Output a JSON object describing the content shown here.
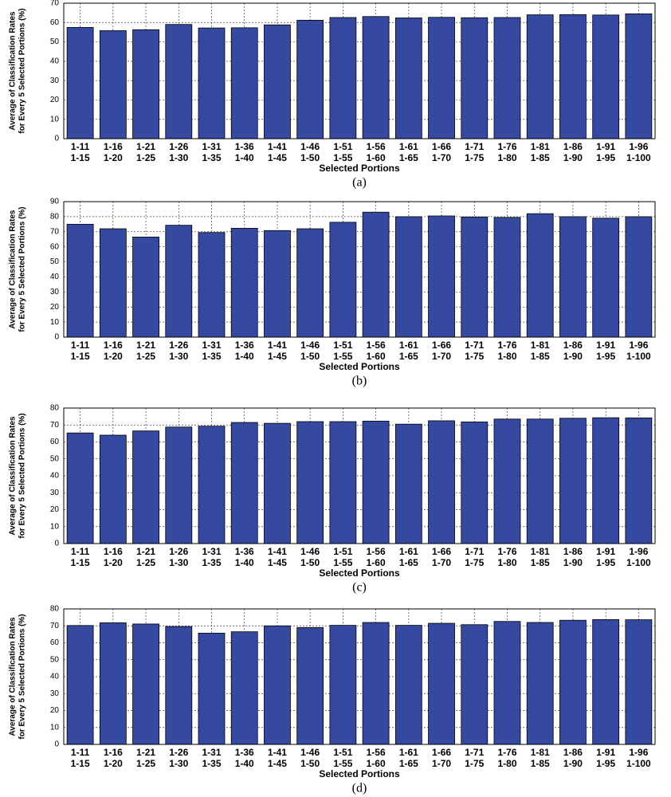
{
  "chart_data": [
    {
      "type": "bar",
      "caption": "(a)",
      "xlabel": "Selected Portions",
      "ylabel": [
        "Average of Classification Rates",
        "for Every 5 Selected Portions (%)"
      ],
      "categories": [
        [
          "1-11",
          "1-15"
        ],
        [
          "1-16",
          "1-20"
        ],
        [
          "1-21",
          "1-25"
        ],
        [
          "1-26",
          "1-30"
        ],
        [
          "1-31",
          "1-35"
        ],
        [
          "1-36",
          "1-40"
        ],
        [
          "1-41",
          "1-45"
        ],
        [
          "1-46",
          "1-50"
        ],
        [
          "1-51",
          "1-55"
        ],
        [
          "1-56",
          "1-60"
        ],
        [
          "1-61",
          "1-65"
        ],
        [
          "1-66",
          "1-70"
        ],
        [
          "1-71",
          "1-75"
        ],
        [
          "1-76",
          "1-80"
        ],
        [
          "1-81",
          "1-85"
        ],
        [
          "1-86",
          "1-90"
        ],
        [
          "1-91",
          "1-95"
        ],
        [
          "1-96",
          "1-100"
        ]
      ],
      "values": [
        57.5,
        55.8,
        56.3,
        59,
        57.2,
        57.3,
        58.8,
        61.2,
        62.6,
        63.1,
        62.4,
        62.7,
        62.5,
        62.6,
        64,
        64.1,
        63.9,
        64.5
      ],
      "color": "#3549a0",
      "ylim": [
        0,
        70
      ],
      "yticks": [
        0,
        10,
        20,
        30,
        40,
        50,
        60,
        70
      ],
      "grid": true
    },
    {
      "type": "bar",
      "caption": "(b)",
      "xlabel": "Selected Portions",
      "ylabel": [
        "Average of Classification Rates",
        "for Every 5 Selected Portions (%)"
      ],
      "categories": [
        [
          "1-11",
          "1-15"
        ],
        [
          "1-16",
          "1-20"
        ],
        [
          "1-21",
          "1-25"
        ],
        [
          "1-26",
          "1-30"
        ],
        [
          "1-31",
          "1-35"
        ],
        [
          "1-36",
          "1-40"
        ],
        [
          "1-41",
          "1-45"
        ],
        [
          "1-46",
          "1-50"
        ],
        [
          "1-51",
          "1-55"
        ],
        [
          "1-56",
          "1-60"
        ],
        [
          "1-61",
          "1-65"
        ],
        [
          "1-66",
          "1-70"
        ],
        [
          "1-71",
          "1-75"
        ],
        [
          "1-76",
          "1-80"
        ],
        [
          "1-81",
          "1-85"
        ],
        [
          "1-86",
          "1-90"
        ],
        [
          "1-91",
          "1-95"
        ],
        [
          "1-96",
          "1-100"
        ]
      ],
      "values": [
        75,
        72,
        66.5,
        74.3,
        69.5,
        72.3,
        70.8,
        72,
        76.3,
        83,
        80,
        80.5,
        79.8,
        79.5,
        82,
        80,
        79,
        80
      ],
      "color": "#3549a0",
      "ylim": [
        0,
        90
      ],
      "yticks": [
        0,
        10,
        20,
        30,
        40,
        50,
        60,
        70,
        80,
        90
      ],
      "grid": true
    },
    {
      "type": "bar",
      "caption": "(c)",
      "xlabel": "Selected Portions",
      "ylabel": [
        "Average of Classification Rates",
        "for Every 5 Selected Portions (%)"
      ],
      "categories": [
        [
          "1-11",
          "1-15"
        ],
        [
          "1-16",
          "1-20"
        ],
        [
          "1-21",
          "1-25"
        ],
        [
          "1-26",
          "1-30"
        ],
        [
          "1-31",
          "1-35"
        ],
        [
          "1-36",
          "1-40"
        ],
        [
          "1-41",
          "1-45"
        ],
        [
          "1-46",
          "1-50"
        ],
        [
          "1-51",
          "1-55"
        ],
        [
          "1-56",
          "1-60"
        ],
        [
          "1-61",
          "1-65"
        ],
        [
          "1-66",
          "1-70"
        ],
        [
          "1-71",
          "1-75"
        ],
        [
          "1-76",
          "1-80"
        ],
        [
          "1-81",
          "1-85"
        ],
        [
          "1-86",
          "1-90"
        ],
        [
          "1-91",
          "1-95"
        ],
        [
          "1-96",
          "1-100"
        ]
      ],
      "values": [
        65.3,
        64,
        66.5,
        68.8,
        69.3,
        71.5,
        71,
        72,
        72,
        72.3,
        70.5,
        72.5,
        71.8,
        73.5,
        73.5,
        74,
        74.3,
        74.2
      ],
      "color": "#3549a0",
      "ylim": [
        0,
        80
      ],
      "yticks": [
        0,
        10,
        20,
        30,
        40,
        50,
        60,
        70,
        80
      ],
      "grid": true
    },
    {
      "type": "bar",
      "caption": "(d)",
      "xlabel": "Selected Portions",
      "ylabel": [
        "Average of Classification Rates",
        "for Every 5 Selected Portions (%)"
      ],
      "categories": [
        [
          "1-11",
          "1-15"
        ],
        [
          "1-16",
          "1-20"
        ],
        [
          "1-21",
          "1-25"
        ],
        [
          "1-26",
          "1-30"
        ],
        [
          "1-31",
          "1-35"
        ],
        [
          "1-36",
          "1-40"
        ],
        [
          "1-41",
          "1-45"
        ],
        [
          "1-46",
          "1-50"
        ],
        [
          "1-51",
          "1-55"
        ],
        [
          "1-56",
          "1-60"
        ],
        [
          "1-61",
          "1-65"
        ],
        [
          "1-66",
          "1-70"
        ],
        [
          "1-71",
          "1-75"
        ],
        [
          "1-76",
          "1-80"
        ],
        [
          "1-81",
          "1-85"
        ],
        [
          "1-86",
          "1-90"
        ],
        [
          "1-91",
          "1-95"
        ],
        [
          "1-96",
          "1-100"
        ]
      ],
      "values": [
        70.2,
        71.8,
        71.1,
        69.6,
        65.7,
        66.5,
        70,
        69,
        70.3,
        72,
        70.3,
        71.5,
        70.7,
        72.6,
        72,
        73.3,
        73.7,
        73.6
      ],
      "color": "#3549a0",
      "ylim": [
        0,
        80
      ],
      "yticks": [
        0,
        10,
        20,
        30,
        40,
        50,
        60,
        70,
        80
      ],
      "grid": true
    }
  ]
}
